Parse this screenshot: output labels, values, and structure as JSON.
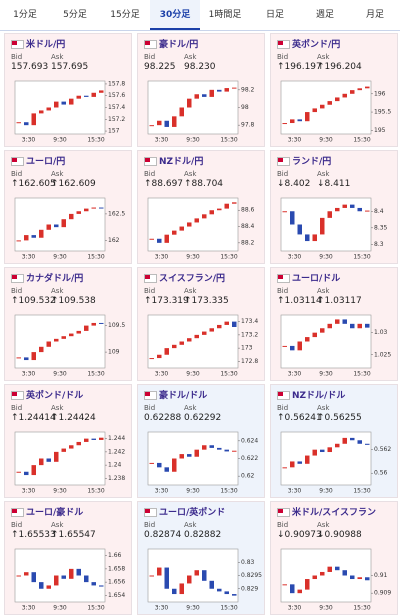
{
  "tabs": [
    "1分足",
    "5分足",
    "15分足",
    "30分足",
    "1時間足",
    "日足",
    "週足",
    "月足"
  ],
  "active_tab": 3,
  "bid_label": "Bid",
  "ask_label": "Ask",
  "cards": [
    {
      "name": "米ドル/円",
      "bid": "157.693",
      "ask": "157.695",
      "color": "#fdf0f1",
      "ylim": [
        156.95,
        157.85
      ],
      "yticks": [
        157.8,
        157.6,
        157.4,
        157.2,
        157
      ],
      "xticks": [
        "3:30",
        "9:30",
        "15:30"
      ],
      "closes": [
        157.15,
        157.1,
        157.3,
        157.35,
        157.4,
        157.5,
        157.45,
        157.55,
        157.6,
        157.58,
        157.65,
        157.69
      ]
    },
    {
      "name": "豪ドル/円",
      "bid": "98.225",
      "ask": "98.230",
      "color": "#fdf0f1",
      "ylim": [
        97.7,
        98.3
      ],
      "yticks": [
        98.2,
        98,
        97.8
      ],
      "xticks": [
        "3:30",
        "9:30",
        "15:30"
      ],
      "closes": [
        97.8,
        97.85,
        97.78,
        97.9,
        98.0,
        98.1,
        98.15,
        98.12,
        98.2,
        98.18,
        98.22,
        98.225
      ]
    },
    {
      "name": "英ポンド/円",
      "bid": "↑196.197",
      "ask": "↑196.204",
      "color": "#fdf0f1",
      "ylim": [
        194.9,
        196.35
      ],
      "yticks": [
        196,
        195.5,
        195
      ],
      "xticks": [
        "3:30",
        "9:30",
        "15:30"
      ],
      "closes": [
        195.2,
        195.3,
        195.25,
        195.5,
        195.6,
        195.7,
        195.8,
        195.9,
        196.0,
        196.1,
        196.15,
        196.197
      ]
    },
    {
      "name": "ユーロ/円",
      "bid": "↑162.605",
      "ask": "↑162.609",
      "color": "#fdf0f1",
      "ylim": [
        161.8,
        162.8
      ],
      "yticks": [
        162.5,
        162
      ],
      "xticks": [
        "3:30",
        "9:30",
        "15:30"
      ],
      "closes": [
        162.0,
        162.1,
        162.05,
        162.2,
        162.3,
        162.25,
        162.4,
        162.5,
        162.55,
        162.6,
        162.62,
        162.605
      ]
    },
    {
      "name": "NZドル/円",
      "bid": "↑88.697",
      "ask": "↑88.704",
      "color": "#fdf0f1",
      "ylim": [
        88.1,
        88.75
      ],
      "yticks": [
        88.6,
        88.4,
        88.2
      ],
      "xticks": [
        "3:30",
        "9:30",
        "15:30"
      ],
      "closes": [
        88.25,
        88.2,
        88.3,
        88.35,
        88.4,
        88.45,
        88.5,
        88.55,
        88.6,
        88.62,
        88.68,
        88.697
      ]
    },
    {
      "name": "ランド/円",
      "bid": "↓8.402",
      "ask": "↓8.411",
      "color": "#fdf0f1",
      "ylim": [
        8.28,
        8.44
      ],
      "yticks": [
        8.4,
        8.35,
        8.3
      ],
      "xticks": [
        "3:30",
        "9:30",
        "15:30"
      ],
      "closes": [
        8.4,
        8.36,
        8.33,
        8.31,
        8.33,
        8.38,
        8.4,
        8.41,
        8.42,
        8.41,
        8.4,
        8.402
      ]
    },
    {
      "name": "カナダドル/円",
      "bid": "↑109.532",
      "ask": "↑109.538",
      "color": "#fdf0f1",
      "ylim": [
        108.7,
        109.7
      ],
      "yticks": [
        109.5,
        109
      ],
      "xticks": [
        "3:30",
        "9:30",
        "15:30"
      ],
      "closes": [
        108.9,
        108.85,
        109.0,
        109.1,
        109.2,
        109.25,
        109.3,
        109.35,
        109.4,
        109.5,
        109.55,
        109.532
      ]
    },
    {
      "name": "スイスフラン/円",
      "bid": "↑173.319",
      "ask": "↑173.335",
      "color": "#fdf0f1",
      "ylim": [
        172.7,
        173.5
      ],
      "yticks": [
        173.4,
        173.2,
        173,
        172.8
      ],
      "xticks": [
        "3:30",
        "9:30",
        "15:30"
      ],
      "closes": [
        172.85,
        172.9,
        173.0,
        173.05,
        173.1,
        173.15,
        173.2,
        173.25,
        173.3,
        173.35,
        173.4,
        173.319
      ]
    },
    {
      "name": "ユーロ/ドル",
      "bid": "↑1.03114",
      "ask": "↑1.03117",
      "color": "#fdf0f1",
      "ylim": [
        1.022,
        1.034
      ],
      "yticks": [
        1.03,
        1.025
      ],
      "xticks": [
        "3:30",
        "9:30",
        "15:30"
      ],
      "closes": [
        1.027,
        1.026,
        1.028,
        1.029,
        1.03,
        1.031,
        1.032,
        1.033,
        1.032,
        1.031,
        1.032,
        1.03114
      ]
    },
    {
      "name": "英ポンド/ドル",
      "bid": "↑1.24414",
      "ask": "↑1.24424",
      "color": "#fdf0f1",
      "ylim": [
        1.237,
        1.245
      ],
      "yticks": [
        1.244,
        1.242,
        1.24,
        1.238
      ],
      "xticks": [
        "3:30",
        "9:30",
        "15:30"
      ],
      "closes": [
        1.239,
        1.2385,
        1.24,
        1.241,
        1.2405,
        1.242,
        1.2425,
        1.243,
        1.2435,
        1.244,
        1.2438,
        1.24414
      ]
    },
    {
      "name": "豪ドル/ドル",
      "bid": "0.62288",
      "ask": "0.62292",
      "color": "#eef3fb",
      "ylim": [
        0.619,
        0.625
      ],
      "yticks": [
        0.624,
        0.622,
        0.62
      ],
      "xticks": [
        "3:30",
        "9:30",
        "15:30"
      ],
      "closes": [
        0.6215,
        0.621,
        0.6205,
        0.622,
        0.6225,
        0.6222,
        0.623,
        0.6235,
        0.6232,
        0.623,
        0.6228,
        0.62288
      ]
    },
    {
      "name": "NZドル/ドル",
      "bid": "↑0.56241",
      "ask": "↑0.56255",
      "color": "#eef3fb",
      "ylim": [
        0.559,
        0.5635
      ],
      "yticks": [
        0.562,
        0.56
      ],
      "xticks": [
        "3:30",
        "9:30",
        "15:30"
      ],
      "closes": [
        0.5605,
        0.561,
        0.5608,
        0.5615,
        0.562,
        0.5618,
        0.5622,
        0.5625,
        0.563,
        0.5628,
        0.5625,
        0.56241
      ]
    },
    {
      "name": "ユーロ/豪ドル",
      "bid": "↑1.65533",
      "ask": "↑1.65547",
      "color": "#fdf0f1",
      "ylim": [
        1.653,
        1.661
      ],
      "yticks": [
        1.66,
        1.658,
        1.656,
        1.654
      ],
      "xticks": [
        "3:30",
        "9:30",
        "15:30"
      ],
      "closes": [
        1.657,
        1.6575,
        1.656,
        1.655,
        1.6555,
        1.657,
        1.6565,
        1.658,
        1.657,
        1.656,
        1.6555,
        1.65533
      ]
    },
    {
      "name": "ユーロ/英ポンド",
      "bid": "0.82874",
      "ask": "0.82882",
      "color": "#eef3fb",
      "ylim": [
        0.8285,
        0.8305
      ],
      "yticks": [
        0.83,
        0.8295,
        0.829
      ],
      "xticks": [
        "3:30",
        "9:30",
        "15:30"
      ],
      "closes": [
        0.8295,
        0.8298,
        0.829,
        0.8288,
        0.8292,
        0.8295,
        0.8297,
        0.8293,
        0.829,
        0.8289,
        0.8288,
        0.82874
      ]
    },
    {
      "name": "米ドル/スイスフラン",
      "bid": "↓0.90973",
      "ask": "↓0.90988",
      "color": "#fdf0f1",
      "ylim": [
        0.9085,
        0.9115
      ],
      "yticks": [
        0.91,
        0.909
      ],
      "xticks": [
        "3:30",
        "9:30",
        "15:30"
      ],
      "closes": [
        0.9095,
        0.909,
        0.9092,
        0.9098,
        0.91,
        0.9102,
        0.9105,
        0.9103,
        0.91,
        0.9098,
        0.9099,
        0.90973
      ]
    }
  ]
}
